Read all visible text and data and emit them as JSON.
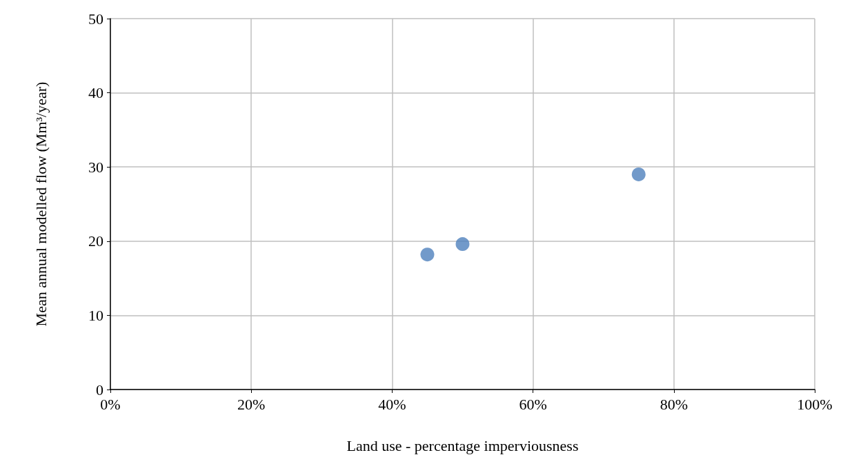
{
  "chart_data": {
    "type": "scatter",
    "xlabel": "Land use - percentage imperviousness",
    "ylabel": "Mean annual modelled flow (Mm³/year)",
    "x": [
      45,
      50,
      75
    ],
    "values": [
      18.2,
      19.6,
      29.0
    ],
    "color": "#4f81bd",
    "marker": "circle",
    "xlim": [
      0,
      100
    ],
    "xticks": [
      {
        "value": 0,
        "label": "0%"
      },
      {
        "value": 20,
        "label": "20%"
      },
      {
        "value": 40,
        "label": "40%"
      },
      {
        "value": 60,
        "label": "60%"
      },
      {
        "value": 80,
        "label": "80%"
      },
      {
        "value": 100,
        "label": "100%"
      }
    ],
    "ylim": [
      0,
      50
    ],
    "yticks": [
      0,
      10,
      20,
      30,
      40,
      50
    ],
    "grid": true
  }
}
